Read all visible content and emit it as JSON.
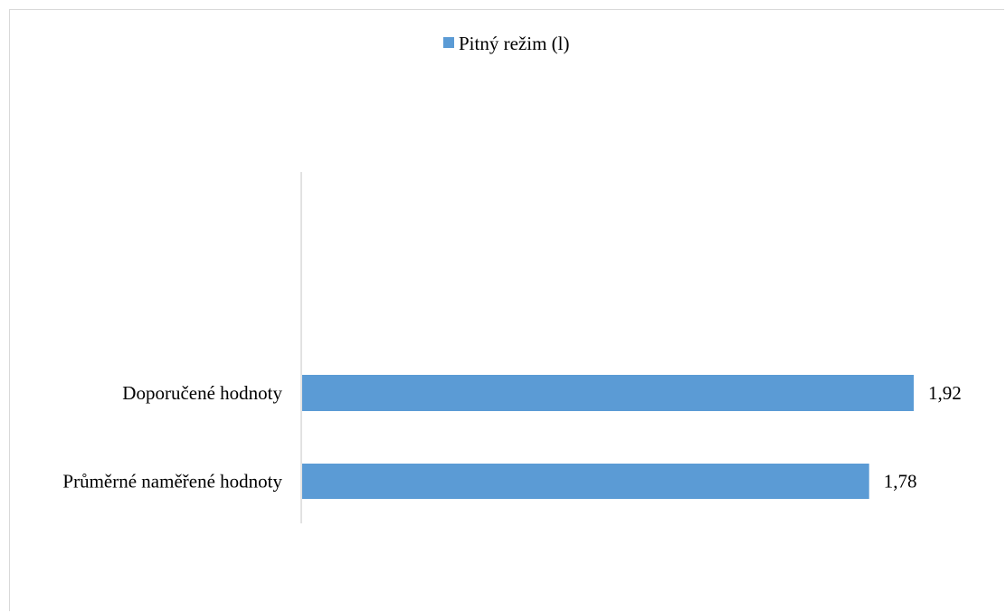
{
  "chart_data": {
    "type": "bar",
    "orientation": "horizontal",
    "categories": [
      "Doporučené hodnoty",
      "Průměrné naměřené hodnoty"
    ],
    "series": [
      {
        "name": "Pitný režim (l)",
        "values": [
          1.92,
          1.78
        ],
        "color": "#5b9bd5"
      }
    ],
    "data_labels": [
      "1,92",
      "1,78"
    ],
    "x_axis_visible": false,
    "grid": false,
    "legend": "top-center"
  }
}
